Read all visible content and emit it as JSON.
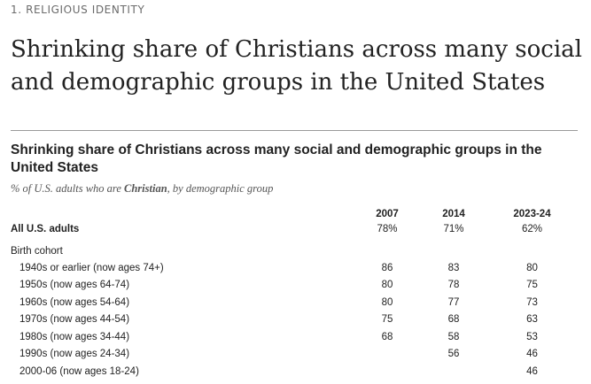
{
  "kicker": "1. RELIGIOUS IDENTITY",
  "headline": "Shrinking share of Christians across many social and demographic groups in the United States",
  "chart": {
    "title": "Shrinking share of Christians across many social and demographic groups in the United States",
    "subtitle_pre": "% of U.S. adults who are ",
    "subtitle_em": "Christian",
    "subtitle_post": ", by demographic group"
  },
  "chart_data": {
    "type": "table",
    "columns": [
      "2007",
      "2014",
      "2023-24"
    ],
    "rows": [
      {
        "label": "All U.S. adults",
        "values": [
          "78%",
          "71%",
          "62%"
        ]
      },
      {
        "label": "Birth cohort",
        "values": [
          "",
          "",
          ""
        ]
      },
      {
        "label": "1940s or earlier (now ages 74+)",
        "values": [
          "86",
          "83",
          "80"
        ]
      },
      {
        "label": "1950s (now ages 64-74)",
        "values": [
          "80",
          "78",
          "75"
        ]
      },
      {
        "label": "1960s (now ages 54-64)",
        "values": [
          "80",
          "77",
          "73"
        ]
      },
      {
        "label": "1970s (now ages 44-54)",
        "values": [
          "75",
          "68",
          "63"
        ]
      },
      {
        "label": "1980s (now ages 34-44)",
        "values": [
          "68",
          "58",
          "53"
        ]
      },
      {
        "label": "1990s (now ages 24-34)",
        "values": [
          "",
          "56",
          "46"
        ]
      },
      {
        "label": "2000-06 (now ages 18-24)",
        "values": [
          "",
          "",
          "46"
        ]
      }
    ]
  }
}
